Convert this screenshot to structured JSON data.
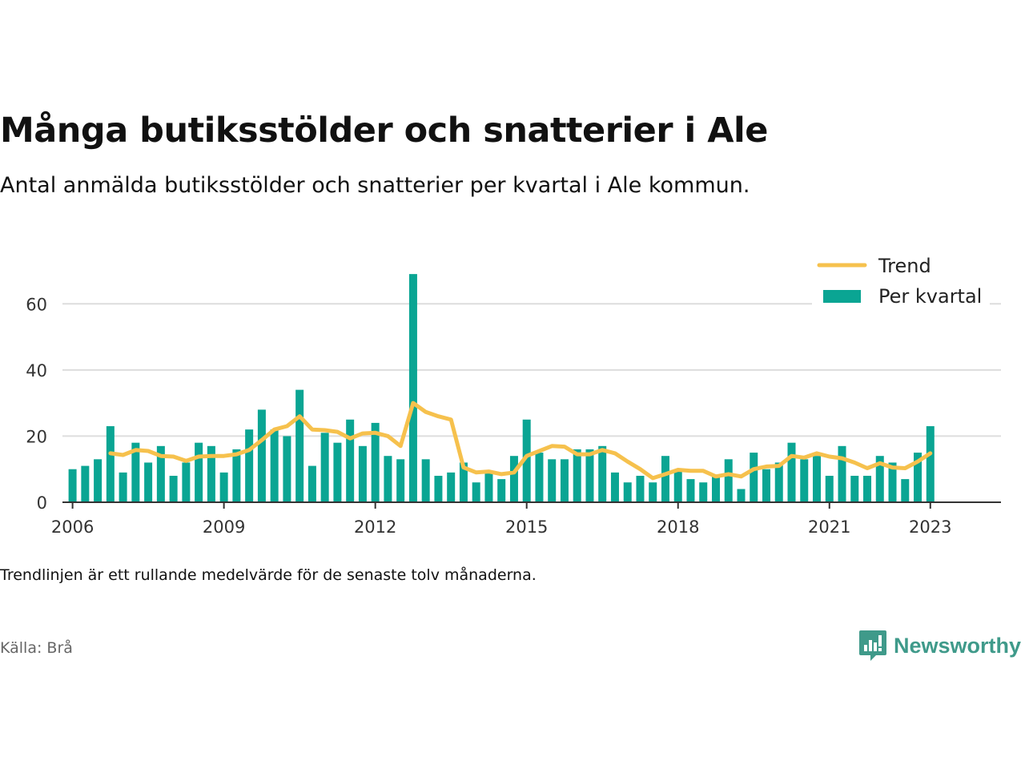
{
  "header": {
    "title": "Många butiksstölder och snatterier i Ale",
    "subtitle": "Antal anmälda butiksstölder och snatterier per kvartal i Ale kommun."
  },
  "footer": {
    "note": "Trendlinjen är ett rullande medelvärde för de senaste tolv månaderna.",
    "source": "Källa: Brå",
    "brand": "Newsworthy"
  },
  "colors": {
    "bar": "#0aa593",
    "trend": "#f6c14d",
    "grid": "#dddddd",
    "axis": "#333333",
    "brand": "#3f9a8a"
  },
  "chart_data": {
    "type": "bar",
    "title": "Många butiksstölder och snatterier i Ale",
    "xlabel": "",
    "ylabel": "",
    "ylim": [
      0,
      70
    ],
    "yticks": [
      0,
      20,
      40,
      60
    ],
    "xlim": [
      2005.8,
      2024.4
    ],
    "xticks": [
      "2006",
      "2009",
      "2012",
      "2015",
      "2018",
      "2021",
      "2023"
    ],
    "grid": true,
    "legend_position": "top-right",
    "categories": [
      "2006 Q1",
      "2006 Q2",
      "2006 Q3",
      "2006 Q4",
      "2007 Q1",
      "2007 Q2",
      "2007 Q3",
      "2007 Q4",
      "2008 Q1",
      "2008 Q2",
      "2008 Q3",
      "2008 Q4",
      "2009 Q1",
      "2009 Q2",
      "2009 Q3",
      "2009 Q4",
      "2010 Q1",
      "2010 Q2",
      "2010 Q3",
      "2010 Q4",
      "2011 Q1",
      "2011 Q2",
      "2011 Q3",
      "2011 Q4",
      "2012 Q1",
      "2012 Q2",
      "2012 Q3",
      "2012 Q4",
      "2013 Q1",
      "2013 Q2",
      "2013 Q3",
      "2013 Q4",
      "2014 Q1",
      "2014 Q2",
      "2014 Q3",
      "2014 Q4",
      "2015 Q1",
      "2015 Q2",
      "2015 Q3",
      "2015 Q4",
      "2016 Q1",
      "2016 Q2",
      "2016 Q3",
      "2016 Q4",
      "2017 Q1",
      "2017 Q2",
      "2017 Q3",
      "2017 Q4",
      "2018 Q1",
      "2018 Q2",
      "2018 Q3",
      "2018 Q4",
      "2019 Q1",
      "2019 Q2",
      "2019 Q3",
      "2019 Q4",
      "2020 Q1",
      "2020 Q2",
      "2020 Q3",
      "2020 Q4",
      "2021 Q1",
      "2021 Q2",
      "2021 Q3",
      "2021 Q4",
      "2022 Q1",
      "2022 Q2",
      "2022 Q3",
      "2022 Q4",
      "2023 Q1"
    ],
    "series": [
      {
        "name": "Per kvartal",
        "type": "bar",
        "values": [
          10,
          11,
          13,
          23,
          9,
          18,
          12,
          17,
          8,
          12,
          18,
          17,
          9,
          16,
          22,
          28,
          22,
          20,
          34,
          11,
          21,
          18,
          25,
          17,
          24,
          14,
          13,
          69,
          13,
          8,
          9,
          12,
          6,
          9,
          7,
          14,
          25,
          15,
          13,
          13,
          16,
          16,
          17,
          9,
          6,
          8,
          6,
          14,
          10,
          7,
          6,
          8,
          13,
          4,
          15,
          10,
          12,
          18,
          13,
          14,
          8,
          17,
          8,
          8,
          14,
          12,
          7,
          15,
          23
        ]
      },
      {
        "name": "Trend",
        "type": "line",
        "values": [
          null,
          null,
          null,
          14.8,
          14.3,
          15.8,
          15.5,
          14.0,
          13.8,
          12.5,
          13.8,
          14.0,
          14.0,
          14.5,
          15.8,
          18.8,
          22.0,
          23.0,
          26.0,
          22.0,
          21.8,
          21.3,
          19.3,
          20.8,
          21.0,
          20.0,
          17.0,
          30.0,
          27.3,
          26.0,
          25.0,
          10.5,
          9.0,
          9.3,
          8.5,
          9.0,
          14.0,
          15.5,
          17.0,
          16.8,
          14.5,
          14.5,
          15.8,
          14.8,
          12.3,
          10.0,
          7.3,
          8.5,
          9.8,
          9.5,
          9.5,
          7.8,
          8.5,
          7.8,
          10.0,
          10.8,
          11.0,
          14.0,
          13.5,
          14.8,
          13.8,
          13.3,
          12.0,
          10.3,
          11.8,
          10.5,
          10.3,
          12.3,
          14.8
        ]
      }
    ]
  }
}
